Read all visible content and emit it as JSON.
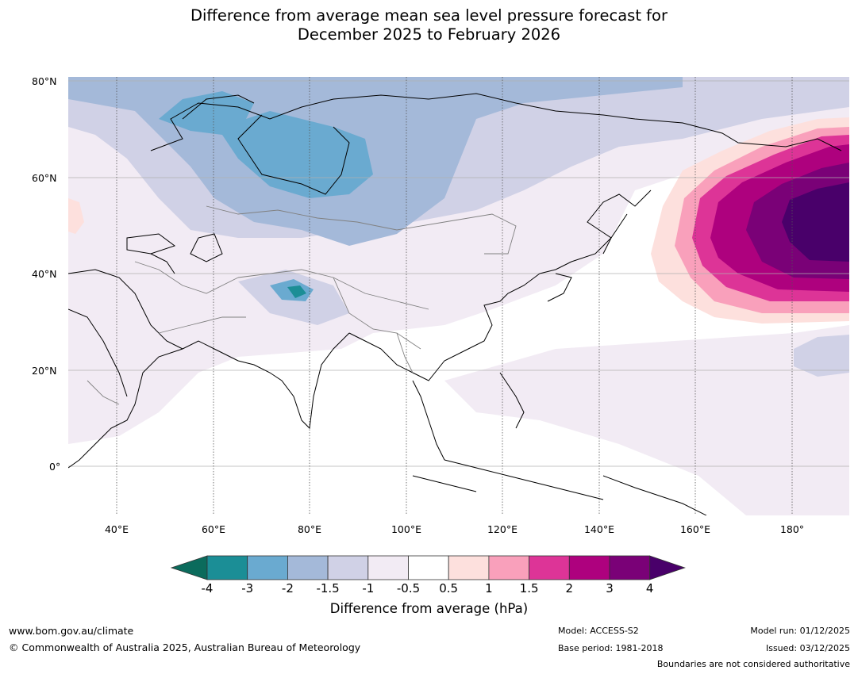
{
  "title": {
    "line1": "Difference from average mean sea level pressure forecast for",
    "line2": "December 2025 to February 2026"
  },
  "map": {
    "lat_labels": [
      "80°N",
      "60°N",
      "40°N",
      "20°N",
      "0°"
    ],
    "lon_labels": [
      "40°E",
      "60°E",
      "80°E",
      "100°E",
      "120°E",
      "140°E",
      "160°E",
      "180°"
    ],
    "extent": {
      "lon_min": 30,
      "lon_max": 191,
      "lat_min": -10,
      "lat_max": 81
    }
  },
  "colorbar": {
    "ticks": [
      "-4",
      "-3",
      "-2",
      "-1.5",
      "-1",
      "-0.5",
      "0.5",
      "1",
      "1.5",
      "2",
      "3",
      "4"
    ],
    "colors": {
      "below": "#0b6b5c",
      "bins": [
        "#1b8e96",
        "#6aaad0",
        "#a4b9d9",
        "#d0d1e6",
        "#f2ebf4",
        "#ffffff",
        "#fde0dd",
        "#f9a0bb",
        "#dd3497",
        "#ae017e",
        "#7a0177"
      ],
      "above": "#49006a"
    },
    "label": "Difference from average (hPa)"
  },
  "footer": {
    "url": "www.bom.gov.au/climate",
    "copyright": "© Commonwealth of Australia 2025, Australian Bureau of Meteorology",
    "model": "Model: ACCESS-S2",
    "base_period": "Base period: 1981-2018",
    "model_run": "Model run: 01/12/2025",
    "issued": "Issued: 03/12/2025",
    "disclaimer": "Boundaries are not considered authoritative"
  }
}
